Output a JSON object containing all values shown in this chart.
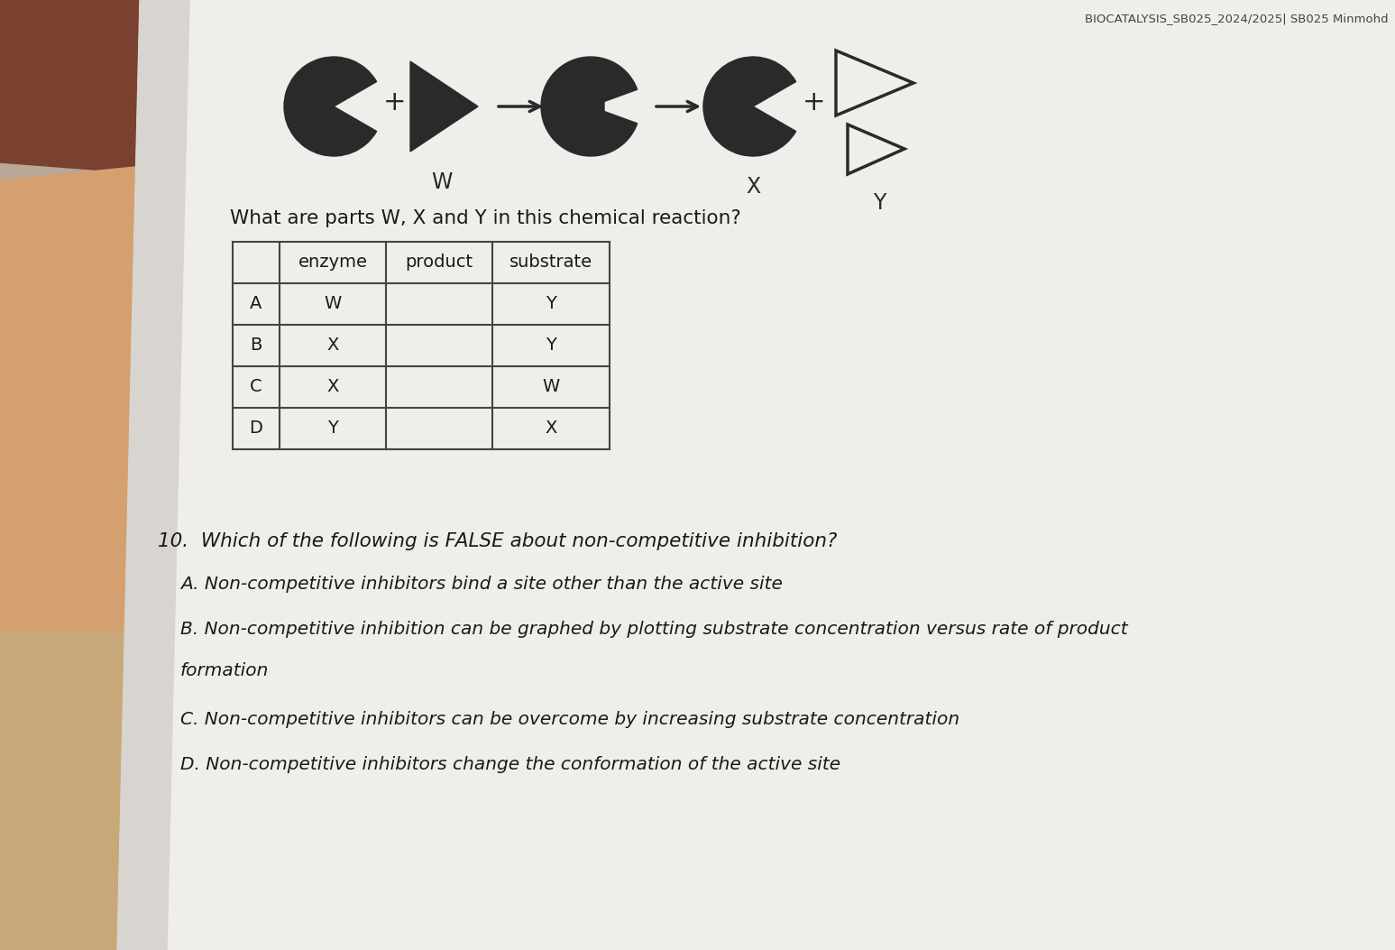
{
  "header_text": "BIOCATALYSIS_SB025_2024/2025| SB025 Minmohd",
  "question9_text": "What are parts W, X and Y in this chemical reaction?",
  "table_headers": [
    "",
    "enzyme",
    "product",
    "substrate"
  ],
  "table_rows": [
    [
      "A",
      "W",
      "",
      "Y"
    ],
    [
      "B",
      "X",
      "",
      "Y"
    ],
    [
      "C",
      "X",
      "",
      "W"
    ],
    [
      "D",
      "Y",
      "",
      "X"
    ]
  ],
  "question10_text": "10.  Which of the following is FALSE about non-competitive inhibition?",
  "options": [
    "A. Non-competitive inhibitors bind a site other than the active site",
    "B. Non-competitive inhibition can be graphed by plotting substrate concentration versus rate of product\n       formation",
    "C. Non-competitive inhibitors can be overcome by increasing substrate concentration",
    "D. Non-competitive inhibitors change the conformation of the active site"
  ],
  "label_W": "W",
  "label_X": "X",
  "label_Y": "Y",
  "text_color": "#1a1a1a",
  "dark_shape_color": "#2a2a2a",
  "bg_left_color": "#c09070",
  "bg_paper_color": "#e6e4e0",
  "paper_white": "#f0eeeb"
}
